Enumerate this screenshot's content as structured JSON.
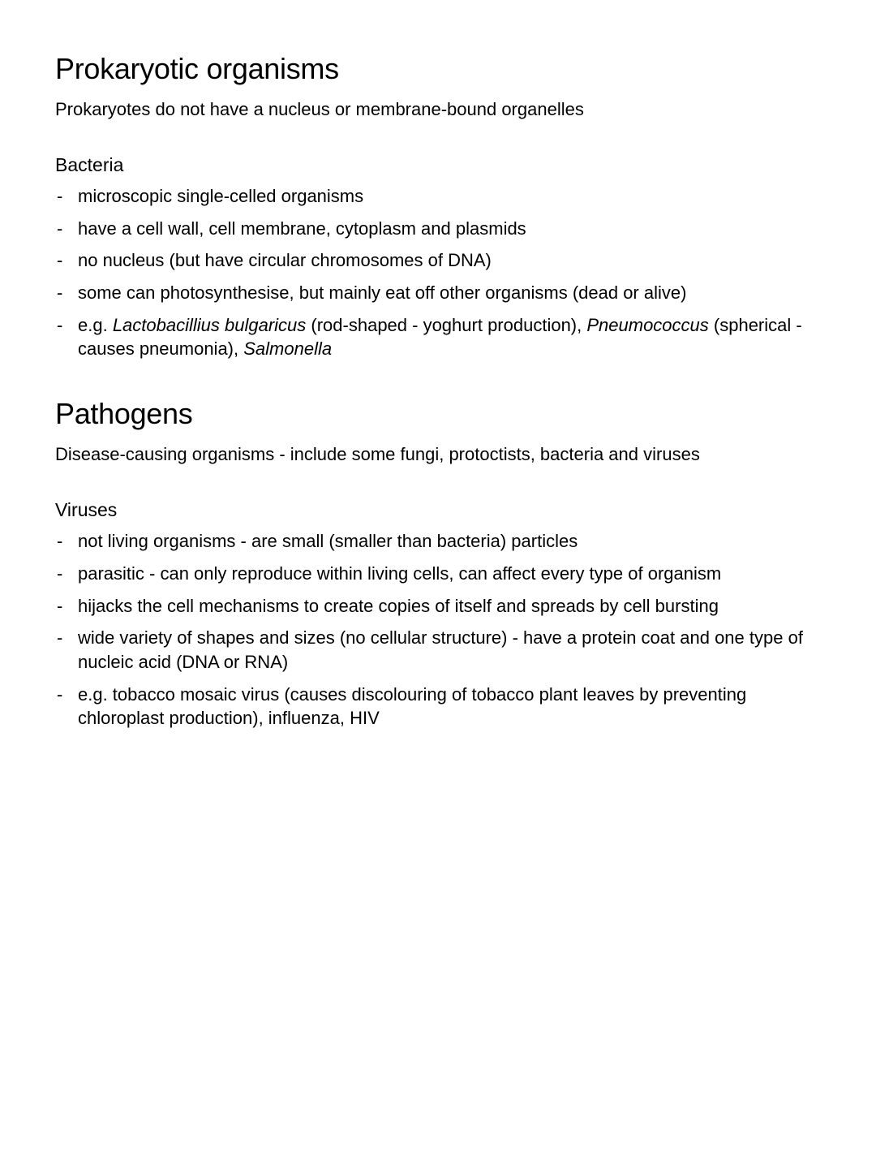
{
  "section1": {
    "title": "Prokaryotic organisms",
    "subtitle": "Prokaryotes do not have a nucleus or membrane-bound organelles",
    "subheading": "Bacteria",
    "items": [
      "microscopic single-celled organisms",
      "have a cell wall, cell membrane, cytoplasm and plasmids",
      "no nucleus (but have circular chromosomes of DNA)",
      "some can photosynthesise, but mainly eat off other organisms (dead or alive)"
    ],
    "last_item_html": "e.g. <span class=\"italic\">Lactobacillius bulgaricus</span> (rod-shaped - yoghurt production), <span class=\"italic\">Pneumococcus</span> (spherical - causes pneumonia), <span class=\"italic\">Salmonella</span>"
  },
  "section2": {
    "title": "Pathogens",
    "subtitle": "Disease-causing organisms - include some fungi, protoctists, bacteria and viruses",
    "subheading": "Viruses",
    "items": [
      "not living organisms - are small (smaller than bacteria) particles",
      "parasitic - can only reproduce within living cells, can affect every type of organism",
      "hijacks the cell mechanisms to create copies of itself and spreads by cell bursting",
      "wide variety of shapes and sizes (no cellular structure) - have a protein coat and one type of nucleic acid (DNA or RNA)",
      "e.g. tobacco mosaic virus (causes discolouring of tobacco plant leaves by preventing chloroplast production), influenza, HIV"
    ]
  },
  "styling": {
    "background_color": "#ffffff",
    "text_color": "#000000",
    "h1_fontsize": 36,
    "subtitle_fontsize": 22,
    "h2_fontsize": 23,
    "li_fontsize": 22,
    "font_family": "-apple-system, Helvetica Neue, Arial"
  }
}
